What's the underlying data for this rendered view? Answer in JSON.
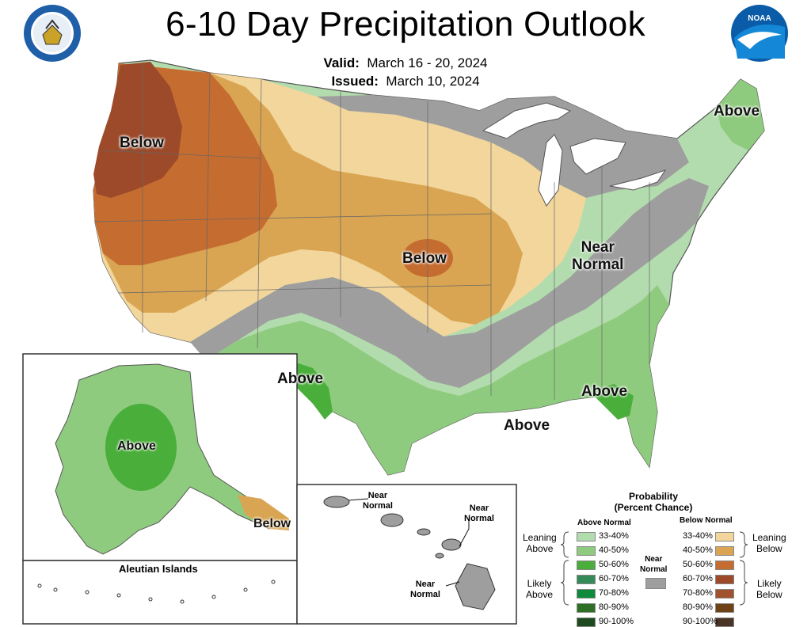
{
  "header": {
    "title": "6-10 Day Precipitation Outlook",
    "valid_label": "Valid:",
    "valid_value": "March 16 - 20, 2024",
    "issued_label": "Issued:",
    "issued_value": "March 10, 2024"
  },
  "logos": {
    "left": "department-of-commerce-seal",
    "right": "noaa-logo",
    "right_text": "NOAA"
  },
  "map_labels": {
    "below_west": "Below",
    "below_central": "Below",
    "above_northeast": "Above",
    "near_normal_line1": "Near",
    "near_normal_line2": "Normal",
    "above_southwest": "Above",
    "above_florida": "Above",
    "above_gulf": "Above"
  },
  "alaska": {
    "above": "Above",
    "below": "Below",
    "aleutian_title": "Aleutian Islands"
  },
  "hawaii": {
    "label_nw": [
      "Near",
      "Normal"
    ],
    "label_ne": [
      "Near",
      "Normal"
    ],
    "label_s": [
      "Near",
      "Normal"
    ]
  },
  "legend": {
    "title_line1": "Probability",
    "title_line2": "(Percent Chance)",
    "above_header": "Above Normal",
    "below_header": "Below Normal",
    "near_label": [
      "Near",
      "Normal"
    ],
    "leaning_above": [
      "Leaning",
      "Above"
    ],
    "likely_above": [
      "Likely",
      "Above"
    ],
    "leaning_below": [
      "Leaning",
      "Below"
    ],
    "likely_below": [
      "Likely",
      "Below"
    ],
    "above_bins": [
      "33-40%",
      "40-50%",
      "50-60%",
      "60-70%",
      "70-80%",
      "80-90%",
      "90-100%"
    ],
    "below_bins": [
      "33-40%",
      "40-50%",
      "50-60%",
      "60-70%",
      "70-80%",
      "80-90%",
      "90-100%"
    ],
    "above_colors": [
      "#b3dcae",
      "#8fcb7e",
      "#4aae3a",
      "#358a5a",
      "#0f8a3b",
      "#2f6e25",
      "#1d4a1f"
    ],
    "below_colors": [
      "#f2d69c",
      "#d9a552",
      "#c56c30",
      "#9c4a2a",
      "#a0522d",
      "#6e4117",
      "#4a3425"
    ],
    "near_color": "#9e9e9e"
  }
}
